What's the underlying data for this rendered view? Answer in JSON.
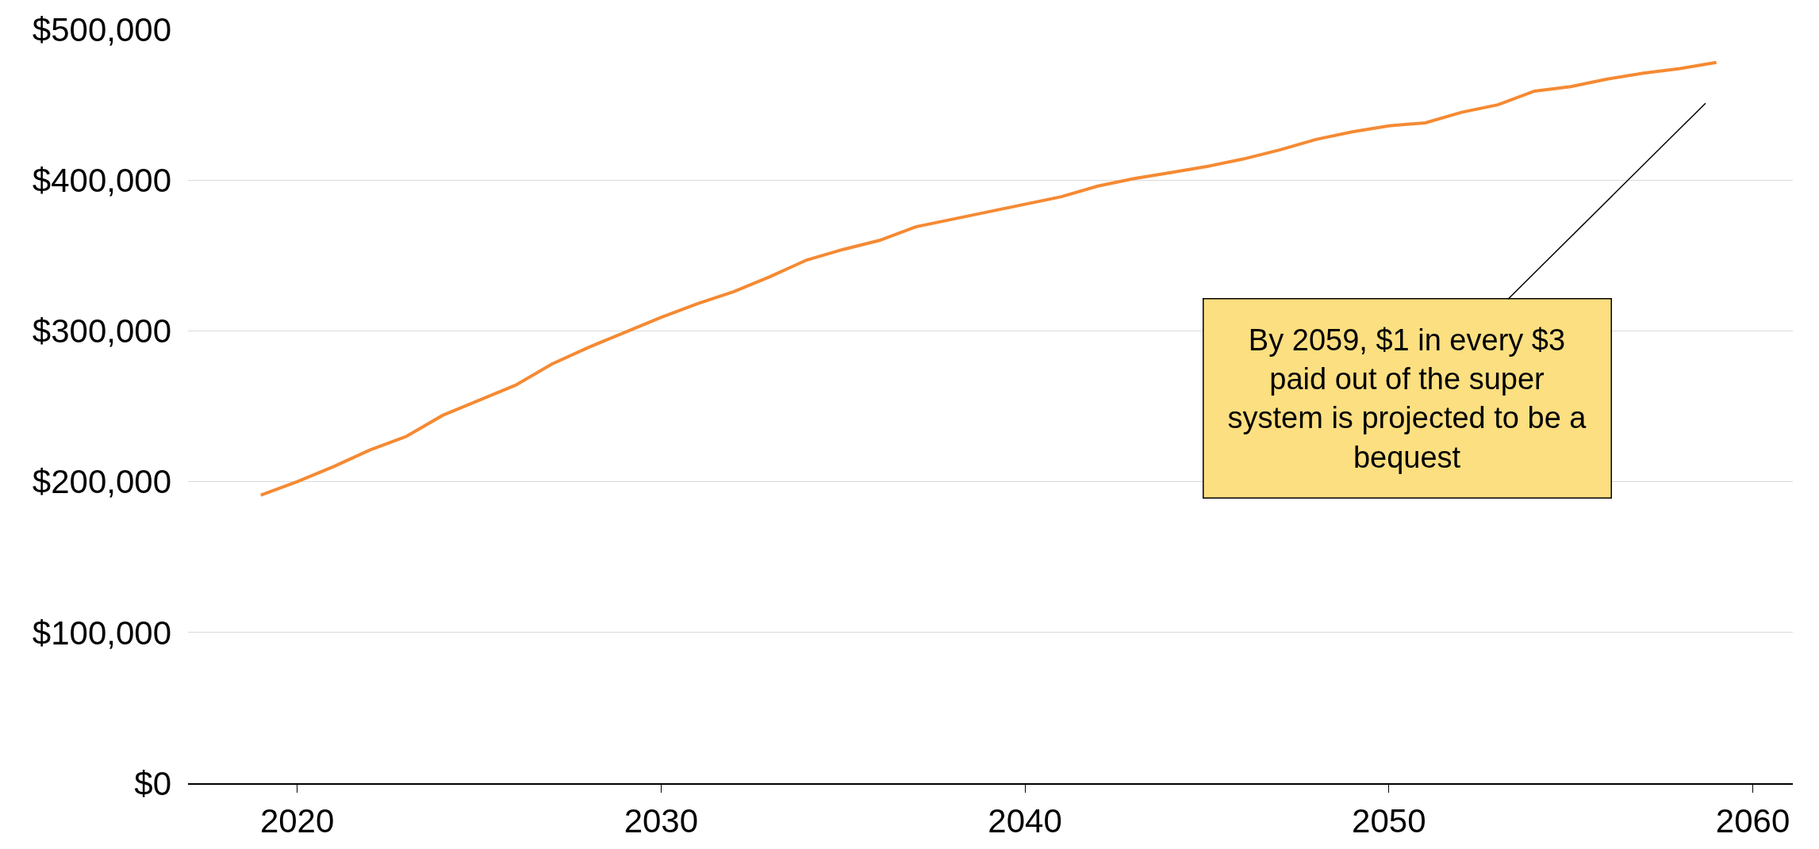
{
  "chart_data": {
    "type": "line",
    "x": [
      2019,
      2020,
      2021,
      2022,
      2023,
      2024,
      2025,
      2026,
      2027,
      2028,
      2029,
      2030,
      2031,
      2032,
      2033,
      2034,
      2035,
      2036,
      2037,
      2038,
      2039,
      2040,
      2041,
      2042,
      2043,
      2044,
      2045,
      2046,
      2047,
      2048,
      2049,
      2050,
      2051,
      2052,
      2053,
      2054,
      2055,
      2056,
      2057,
      2058,
      2059
    ],
    "series": [
      {
        "color": "#f58a33",
        "values": [
          191000,
          200000,
          210000,
          221000,
          230000,
          244000,
          254000,
          264000,
          278000,
          289000,
          299000,
          309000,
          318000,
          326000,
          336000,
          347000,
          354000,
          360000,
          369000,
          374000,
          379000,
          384000,
          389000,
          396000,
          401000,
          405000,
          409000,
          414000,
          420000,
          427000,
          432000,
          436000,
          438000,
          445000,
          450000,
          459000,
          462000,
          467000,
          471000,
          474000,
          478000
        ]
      }
    ],
    "xlim": [
      2017,
      2061.1
    ],
    "xticks": [
      2020,
      2030,
      2040,
      2050,
      2060
    ],
    "ylim": [
      0,
      500000
    ],
    "yticks": [
      {
        "value": 0,
        "label": "$0"
      },
      {
        "value": 100000,
        "label": "$100,000"
      },
      {
        "value": 200000,
        "label": "$200,000"
      },
      {
        "value": 300000,
        "label": "$300,000"
      },
      {
        "value": 400000,
        "label": "$400,000"
      },
      {
        "value": 500000,
        "label": "$500,000"
      }
    ],
    "grid": "y",
    "marker": "none",
    "line_style": "solid",
    "annotations": [
      "By 2059, $1 in every $3\npaid out of the super\nsystem is projected to be a\nbequest"
    ]
  }
}
